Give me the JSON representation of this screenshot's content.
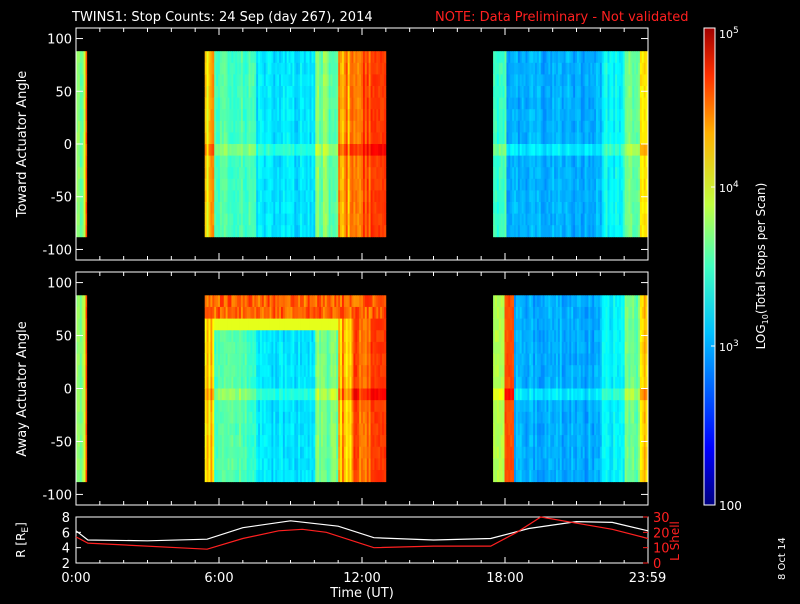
{
  "title": {
    "main": "TWINS1: Stop Counts: 24 Sep (day 267), 2014",
    "note": "NOTE: Data Preliminary - Not validated",
    "note_color": "#ff2020"
  },
  "footer_date": "8 Oct 14",
  "chart_data": [
    {
      "type": "heatmap",
      "panel": "toward",
      "ylabel": "Toward Actuator Angle",
      "xlim": [
        0,
        24
      ],
      "ylim": [
        -110,
        110
      ],
      "yticks": [
        100,
        50,
        0,
        -50,
        -100
      ],
      "angle_range": [
        -88,
        88
      ],
      "data_segments": [
        {
          "start": 0.0,
          "end": 0.45,
          "level": "mixed (green-cyan, orange stripe)"
        },
        {
          "start": 5.4,
          "end": 13.0,
          "level": "mostly 2.9-3.2 (blue-cyan), orange columns at edges"
        },
        {
          "start": 17.5,
          "end": 24.0,
          "level": "mostly 2.6-3.0 (blue), cyan/green near end"
        }
      ]
    },
    {
      "type": "heatmap",
      "panel": "away",
      "ylabel": "Away Actuator Angle",
      "xlim": [
        0,
        24
      ],
      "ylim": [
        -110,
        110
      ],
      "yticks": [
        100,
        50,
        0,
        -50,
        -100
      ],
      "angle_range": [
        -88,
        88
      ],
      "data_segments": [
        {
          "start": 0.0,
          "end": 0.45,
          "level": "mixed (green-cyan, orange stripe)"
        },
        {
          "start": 5.4,
          "end": 13.0,
          "level": "mostly 2.9-3.2, orange band near +80 deg"
        },
        {
          "start": 17.5,
          "end": 24.0,
          "level": "orange at start, then 2.6-3.0"
        }
      ]
    },
    {
      "type": "line",
      "panel": "orbit",
      "ylabel": "R [RE]",
      "ylabel2": "L Shell",
      "ylabel2_color": "#ff2020",
      "xlabel": "Time (UT)",
      "xticks": [
        "0:00",
        "6:00",
        "12:00",
        "18:00",
        "23:59"
      ],
      "xtick_hours": [
        0,
        6,
        12,
        18,
        23.98
      ],
      "ylim": [
        2,
        8
      ],
      "yticks": [
        2,
        4,
        6,
        8
      ],
      "ylim2": [
        0,
        30
      ],
      "yticks2": [
        0,
        10,
        20,
        30
      ],
      "series": [
        {
          "label": "R",
          "color": "#ffffff",
          "x": [
            0,
            0.5,
            3,
            5.5,
            7,
            9,
            11,
            12.5,
            15,
            17.4,
            19,
            21,
            22.5,
            24
          ],
          "y": [
            6.2,
            5.0,
            4.9,
            5.1,
            6.6,
            7.5,
            6.8,
            5.3,
            5.0,
            5.2,
            6.5,
            7.4,
            7.3,
            6.2
          ]
        },
        {
          "label": "L Shell",
          "color": "#ff2020",
          "x": [
            0,
            0.5,
            5.5,
            7,
            8.5,
            9.5,
            10.5,
            12.5,
            15,
            17.4,
            18.5,
            19.5,
            22.5,
            24
          ],
          "y": [
            17,
            13,
            9,
            16,
            21,
            22,
            20,
            10,
            11,
            11,
            20,
            30,
            22,
            16
          ]
        }
      ]
    },
    {
      "type": "colorbar",
      "label": "LOG10(Total Stops per Scan)",
      "min_value": 100,
      "max_value": 100000,
      "ticks": [
        {
          "label": "10",
          "sup": "5",
          "value": 100000
        },
        {
          "label": "10",
          "sup": "4",
          "value": 10000
        },
        {
          "label": "10",
          "sup": "3",
          "value": 1000
        },
        {
          "label": "100",
          "sup": "",
          "value": 100
        }
      ]
    }
  ]
}
